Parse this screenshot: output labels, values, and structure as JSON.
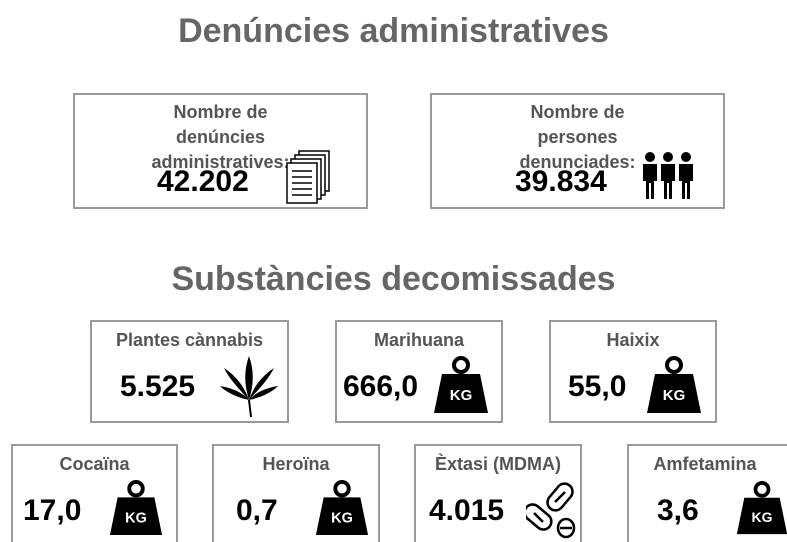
{
  "sections": [
    {
      "title": "Denúncies administratives",
      "cards": [
        {
          "label": "Nombre de denúncies administratives:",
          "value": "42.202"
        },
        {
          "label": "Nombre de persones denunciades:",
          "value": "39.834"
        }
      ]
    },
    {
      "title": "Substàncies decomissades",
      "cards": [
        {
          "label": "Plantes cànnabis",
          "value": "5.525"
        },
        {
          "label": "Marihuana",
          "value": "666,0"
        },
        {
          "label": "Haixix",
          "value": "55,0"
        },
        {
          "label": "Cocaïna",
          "value": "17,0"
        },
        {
          "label": "Heroïna",
          "value": "0,7"
        },
        {
          "label": "Èxtasi (MDMA)",
          "value": "4.015"
        },
        {
          "label": "Amfetamina",
          "value": "3,6"
        }
      ]
    }
  ],
  "icon_label": "KG"
}
